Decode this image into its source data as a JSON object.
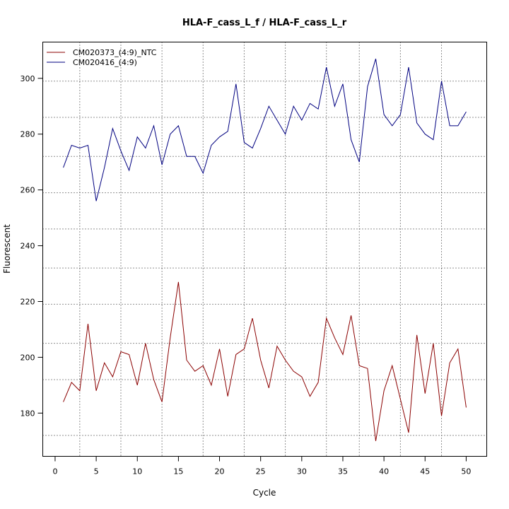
{
  "chart_data": {
    "type": "line",
    "title": "HLA-F_cass_L_f / HLA-F_cass_L_r",
    "xlabel": "Cycle",
    "ylabel": "Fluorescent",
    "xlim": [
      -1.5,
      52.5
    ],
    "ylim": [
      164.5,
      313
    ],
    "x_ticks": [
      0,
      5,
      10,
      15,
      20,
      25,
      30,
      35,
      40,
      45,
      50
    ],
    "y_ticks": [
      180,
      200,
      220,
      240,
      260,
      280,
      300
    ],
    "v_grid": [
      3,
      8,
      13,
      18,
      23,
      28,
      33,
      37,
      42,
      47
    ],
    "h_grid": [
      172,
      192,
      205,
      219,
      232,
      246,
      259,
      272,
      286,
      299
    ],
    "legend_position": "top-left",
    "x": [
      1,
      2,
      3,
      4,
      5,
      6,
      7,
      8,
      9,
      10,
      11,
      12,
      13,
      14,
      15,
      16,
      17,
      18,
      19,
      20,
      21,
      22,
      23,
      24,
      25,
      26,
      27,
      28,
      29,
      30,
      31,
      32,
      33,
      34,
      35,
      36,
      37,
      38,
      39,
      40,
      41,
      42,
      43,
      44,
      45,
      46,
      47,
      48,
      49,
      50
    ],
    "series": [
      {
        "name": "CM020373_(4:9)_NTC",
        "color": "#8b0000",
        "values": [
          184,
          191,
          188,
          212,
          188,
          198,
          193,
          202,
          201,
          190,
          205,
          192,
          184,
          207,
          227,
          199,
          195,
          197,
          190,
          203,
          186,
          201,
          203,
          214,
          199,
          189,
          204,
          199,
          195,
          193,
          186,
          191,
          214,
          207,
          201,
          215,
          197,
          196,
          170,
          188,
          197,
          185,
          173,
          208,
          187,
          205,
          179,
          198,
          203,
          182
        ]
      },
      {
        "name": "CM020416_(4:9)",
        "color": "#000080",
        "values": [
          268,
          276,
          275,
          276,
          256,
          268,
          282,
          274,
          267,
          279,
          275,
          283,
          269,
          280,
          283,
          272,
          272,
          266,
          276,
          279,
          281,
          298,
          277,
          275,
          282,
          290,
          285,
          280,
          290,
          285,
          291,
          289,
          304,
          290,
          298,
          278,
          270,
          297,
          307,
          287,
          283,
          287,
          304,
          284,
          280,
          278,
          299,
          283,
          283,
          288
        ]
      }
    ]
  }
}
